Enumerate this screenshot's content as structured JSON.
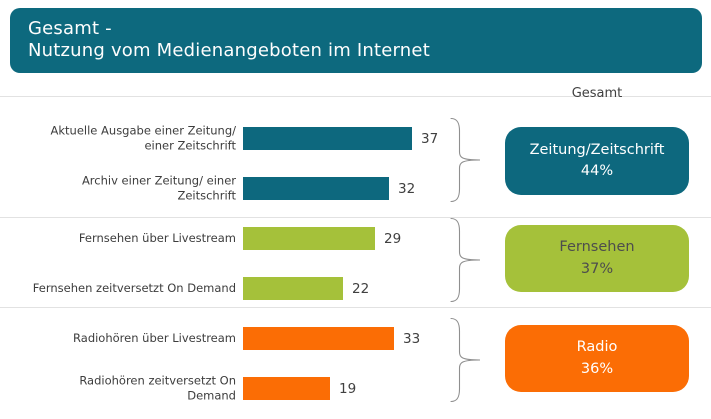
{
  "title": {
    "line1": "Gesamt -",
    "line2": "Nutzung vom Medienangeboten im Internet"
  },
  "right_column_header": "Gesamt",
  "colors": {
    "banner_bg": "#0d697e",
    "banner_text": "#fdfdfd",
    "teal": "#0d687e",
    "green": "#a5c13a",
    "orange": "#fb6d05",
    "label_text": "#3d3d3d",
    "value_text": "#404040",
    "green_box_text": "#4d4d4d",
    "white_box_text": "#ffffff",
    "brace_stroke": "#8f8f8f",
    "gridline": "#e2e2e2"
  },
  "chart_data": {
    "type": "bar",
    "orientation": "horizontal",
    "title": "Gesamt - Nutzung vom Medienangeboten im Internet",
    "xlabel": "",
    "ylabel": "",
    "xlim": [
      0,
      40
    ],
    "grid": "faint horizontal group separators",
    "legend_position": "none",
    "categories": [
      [
        "Aktuelle Ausgabe einer Zeitung/",
        "einer Zeitschrift"
      ],
      [
        "Archiv einer Zeitung/ einer",
        "Zeitschrift"
      ],
      [
        "Fernsehen über Livestream"
      ],
      [
        "Fernsehen zeitversetzt On Demand"
      ],
      [
        "Radiohören über Livestream"
      ],
      [
        "Radiohören zeitversetzt On",
        "Demand"
      ]
    ],
    "values": [
      37,
      32,
      29,
      22,
      33,
      19
    ],
    "groups": [
      {
        "label": "Zeitung/Zeitschrift",
        "percent": "44%",
        "color": "#0d687e",
        "text_color": "#ffffff",
        "bar_indexes": [
          0,
          1
        ]
      },
      {
        "label": "Fernsehen",
        "percent": "37%",
        "color": "#a5c13a",
        "text_color": "#4d4d4d",
        "bar_indexes": [
          2,
          3
        ]
      },
      {
        "label": "Radio",
        "percent": "36%",
        "color": "#fb6d05",
        "text_color": "#ffffff",
        "bar_indexes": [
          4,
          5
        ]
      }
    ]
  }
}
